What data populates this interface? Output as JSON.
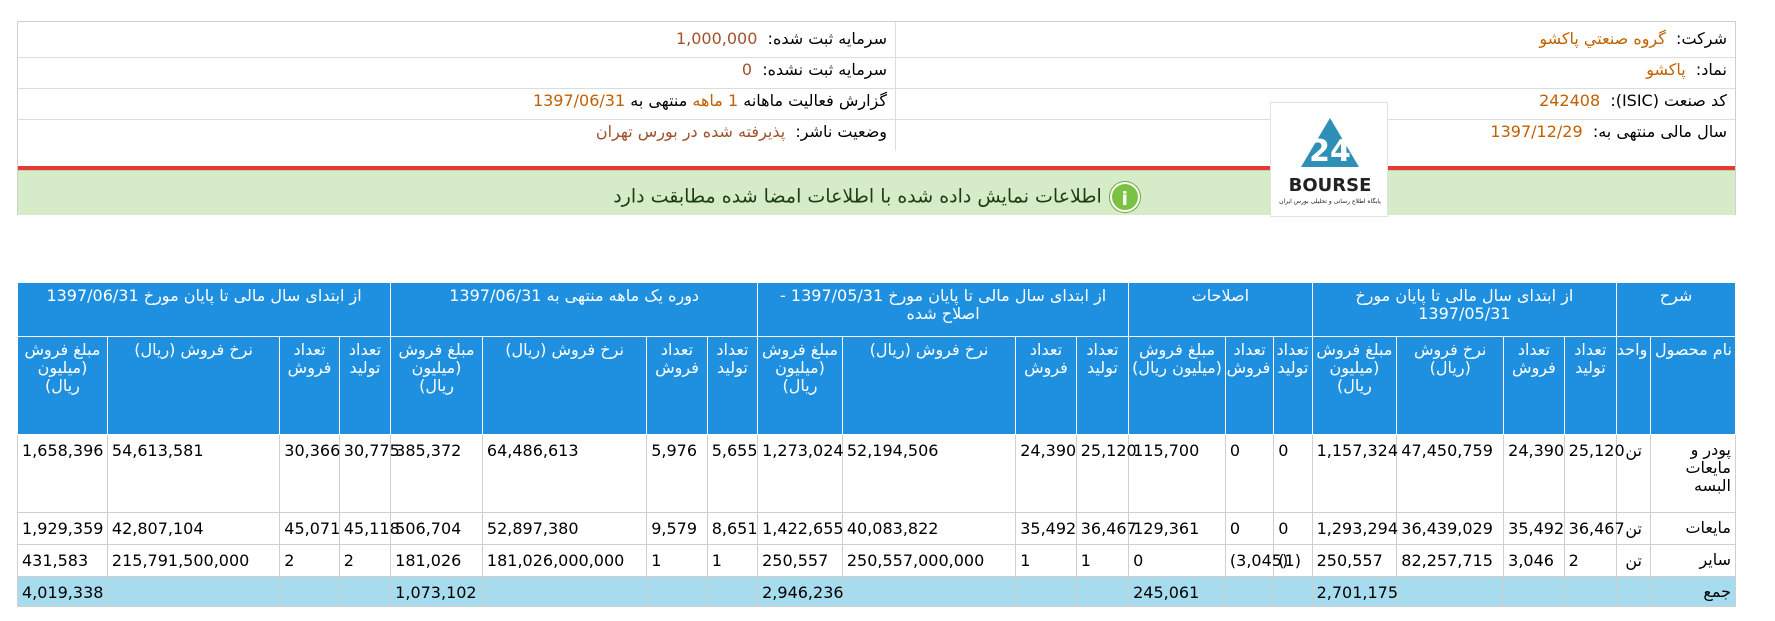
{
  "header": {
    "company_label": "شرکت:",
    "company_value": "گروه صنعتي پاکشو",
    "symbol_label": "نماد:",
    "symbol_value": "پاکشو",
    "isic_label": "کد صنعت (ISIC):",
    "isic_value": "242408",
    "fiscal_label": "سال مالی منتهی به:",
    "fiscal_value": "1397/12/29",
    "reg_capital_label": "سرمایه ثبت شده:",
    "reg_capital_value": "1,000,000",
    "unreg_capital_label": "سرمایه ثبت نشده:",
    "unreg_capital_value": "0",
    "report_label": "گزارش فعالیت ماهانه",
    "report_months": "1 ماهه",
    "report_ending": "منتهی به",
    "report_date": "1397/06/31",
    "publisher_label": "وضعیت ناشر:",
    "publisher_value": "پذیرفته شده در بورس تهران",
    "logo_text": "BOURSE",
    "logo_subtext": "پایگاه اطلاع رسانی و تحلیلی بورس ایران",
    "logo_mark": "24",
    "notice": "اطلاعات نمایش داده شده با اطلاعات امضا شده مطابقت دارد",
    "notice_icon": "i"
  },
  "colors": {
    "table_header": "#1e90df",
    "total_row": "#a7dcef",
    "notice_bg": "#d6ecc8",
    "red_line": "#e53935",
    "value_text": "#a0522d"
  },
  "table": {
    "groups": [
      "شرح",
      "از ابتدای سال مالی تا پایان مورخ 1397/05/31",
      "اصلاحات",
      "از ابتدای سال مالی تا پایان مورخ 1397/05/31 - اصلاح شده",
      "دوره یک ماهه منتهی به 1397/06/31",
      "از ابتدای سال مالی تا پایان مورخ 1397/06/31"
    ],
    "desc_cols": [
      "نام محصول",
      "واحد"
    ],
    "period_cols": [
      "تعداد تولید",
      "تعداد فروش",
      "نرخ فروش (ریال)",
      "مبلغ فروش (میلیون ریال)"
    ],
    "adj_cols": [
      "تعداد تولید",
      "تعداد فروش",
      "مبلغ فروش (میلیون ریال)"
    ],
    "rows": [
      {
        "name": "پودر و مایعات البسه",
        "unit": "تن",
        "cells": [
          "25,120",
          "24,390",
          "47,450,759",
          "1,157,324",
          "0",
          "0",
          "115,700",
          "25,120",
          "24,390",
          "52,194,506",
          "1,273,024",
          "5,655",
          "5,976",
          "64,486,613",
          "385,372",
          "30,775",
          "30,366",
          "54,613,581",
          "1,658,396"
        ]
      },
      {
        "name": "مایعات",
        "unit": "تن",
        "cells": [
          "36,467",
          "35,492",
          "36,439,029",
          "1,293,294",
          "0",
          "0",
          "129,361",
          "36,467",
          "35,492",
          "40,083,822",
          "1,422,655",
          "8,651",
          "9,579",
          "52,897,380",
          "506,704",
          "45,118",
          "45,071",
          "42,807,104",
          "1,929,359"
        ]
      },
      {
        "name": "سایر",
        "unit": "تن",
        "cells": [
          "2",
          "3,046",
          "82,257,715",
          "250,557",
          "(1)",
          "(3,045)",
          "0",
          "1",
          "1",
          "250,557,000,000",
          "250,557",
          "1",
          "1",
          "181,026,000,000",
          "181,026",
          "2",
          "2",
          "215,791,500,000",
          "431,583"
        ]
      }
    ],
    "total": {
      "label": "جمع",
      "cells": [
        "",
        "",
        "",
        "2,701,175",
        "",
        "",
        "245,061",
        "",
        "",
        "",
        "2,946,236",
        "",
        "",
        "",
        "1,073,102",
        "",
        "",
        "",
        "4,019,338"
      ]
    }
  }
}
